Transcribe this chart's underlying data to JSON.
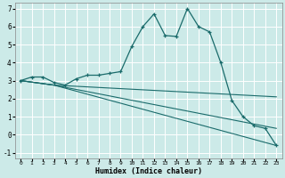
{
  "xlabel": "Humidex (Indice chaleur)",
  "bg_color": "#cceae8",
  "line_color": "#1a6b6b",
  "grid_color": "#ffffff",
  "xlim": [
    -0.5,
    23.5
  ],
  "ylim": [
    -1.3,
    7.3
  ],
  "xticks": [
    0,
    1,
    2,
    3,
    4,
    5,
    6,
    7,
    8,
    9,
    10,
    11,
    12,
    13,
    14,
    15,
    16,
    17,
    18,
    19,
    20,
    21,
    22,
    23
  ],
  "yticks": [
    -1,
    0,
    1,
    2,
    3,
    4,
    5,
    6,
    7
  ],
  "series1_x": [
    0,
    1,
    2,
    3,
    4,
    5,
    6,
    7,
    8,
    9,
    10,
    11,
    12,
    13,
    14,
    15,
    16,
    17,
    18,
    19,
    20,
    21,
    22,
    23
  ],
  "series1_y": [
    3.0,
    3.2,
    3.2,
    2.9,
    2.75,
    3.1,
    3.3,
    3.3,
    3.4,
    3.5,
    4.9,
    6.0,
    6.7,
    5.5,
    5.45,
    7.0,
    6.0,
    5.7,
    4.0,
    1.9,
    1.0,
    0.5,
    0.35,
    -0.6
  ],
  "series2_x": [
    0,
    3,
    23
  ],
  "series2_y": [
    3.0,
    2.75,
    2.1
  ],
  "series3_x": [
    0,
    3,
    23
  ],
  "series3_y": [
    3.0,
    2.75,
    -0.6
  ],
  "series4_x": [
    0,
    3,
    23
  ],
  "series4_y": [
    3.0,
    2.75,
    0.35
  ]
}
